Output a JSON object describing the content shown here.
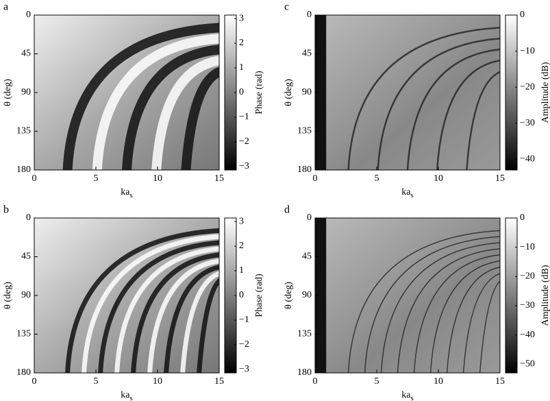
{
  "chart_data": [
    {
      "type": "heatmap",
      "label": "a",
      "xlabel": "ka",
      "xlabel_sub": "s",
      "ylabel": "θ (deg)",
      "xlim": [
        0,
        15
      ],
      "xticks": [
        0,
        5,
        10,
        15
      ],
      "ylim": [
        180,
        0
      ],
      "yticks": [
        0,
        45,
        90,
        135,
        180
      ],
      "colorbar": {
        "label": "Phase (rad)",
        "lim": [
          -3.14,
          3.14
        ],
        "ticks": [
          {
            "value": -3,
            "label": "−3"
          },
          {
            "value": -2,
            "label": "−2"
          },
          {
            "value": -1,
            "label": "−1"
          },
          0,
          1,
          2,
          3
        ]
      }
    },
    {
      "type": "heatmap",
      "label": "b",
      "xlabel": "ka",
      "xlabel_sub": "s",
      "ylabel": "θ (deg)",
      "xlim": [
        0,
        15
      ],
      "xticks": [
        0,
        5,
        10,
        15
      ],
      "ylim": [
        180,
        0
      ],
      "yticks": [
        0,
        45,
        90,
        135,
        180
      ],
      "colorbar": {
        "label": "Phase (rad)",
        "lim": [
          -3.14,
          3.14
        ],
        "ticks": [
          {
            "value": -3,
            "label": "−3"
          },
          {
            "value": -2,
            "label": "−2"
          },
          {
            "value": -1,
            "label": "−1"
          },
          0,
          1,
          2,
          3
        ]
      }
    },
    {
      "type": "heatmap",
      "label": "c",
      "xlabel": "ka",
      "xlabel_sub": "s",
      "ylabel": "θ (deg)",
      "xlim": [
        0,
        15
      ],
      "xticks": [
        0,
        5,
        10,
        15
      ],
      "ylim": [
        180,
        0
      ],
      "yticks": [
        0,
        45,
        90,
        135,
        180
      ],
      "colorbar": {
        "label": "Amplitude (dB)",
        "lim": [
          -43,
          0
        ],
        "ticks": [
          {
            "value": -40,
            "label": "−40"
          },
          {
            "value": -30,
            "label": "−30"
          },
          {
            "value": -20,
            "label": "−20"
          },
          {
            "value": -10,
            "label": "−10"
          },
          0
        ]
      }
    },
    {
      "type": "heatmap",
      "label": "d",
      "xlabel": "ka",
      "xlabel_sub": "s",
      "ylabel": "θ (deg)",
      "xlim": [
        0,
        15
      ],
      "xticks": [
        0,
        5,
        10,
        15
      ],
      "ylim": [
        180,
        0
      ],
      "yticks": [
        0,
        45,
        90,
        135,
        180
      ],
      "colorbar": {
        "label": "Amplitude (dB)",
        "lim": [
          -53,
          0
        ],
        "ticks": [
          {
            "value": -50,
            "label": "−50"
          },
          {
            "value": -40,
            "label": "−40"
          },
          {
            "value": -30,
            "label": "−30"
          },
          {
            "value": -20,
            "label": "−20"
          },
          {
            "value": -10,
            "label": "−10"
          },
          0
        ]
      }
    }
  ]
}
